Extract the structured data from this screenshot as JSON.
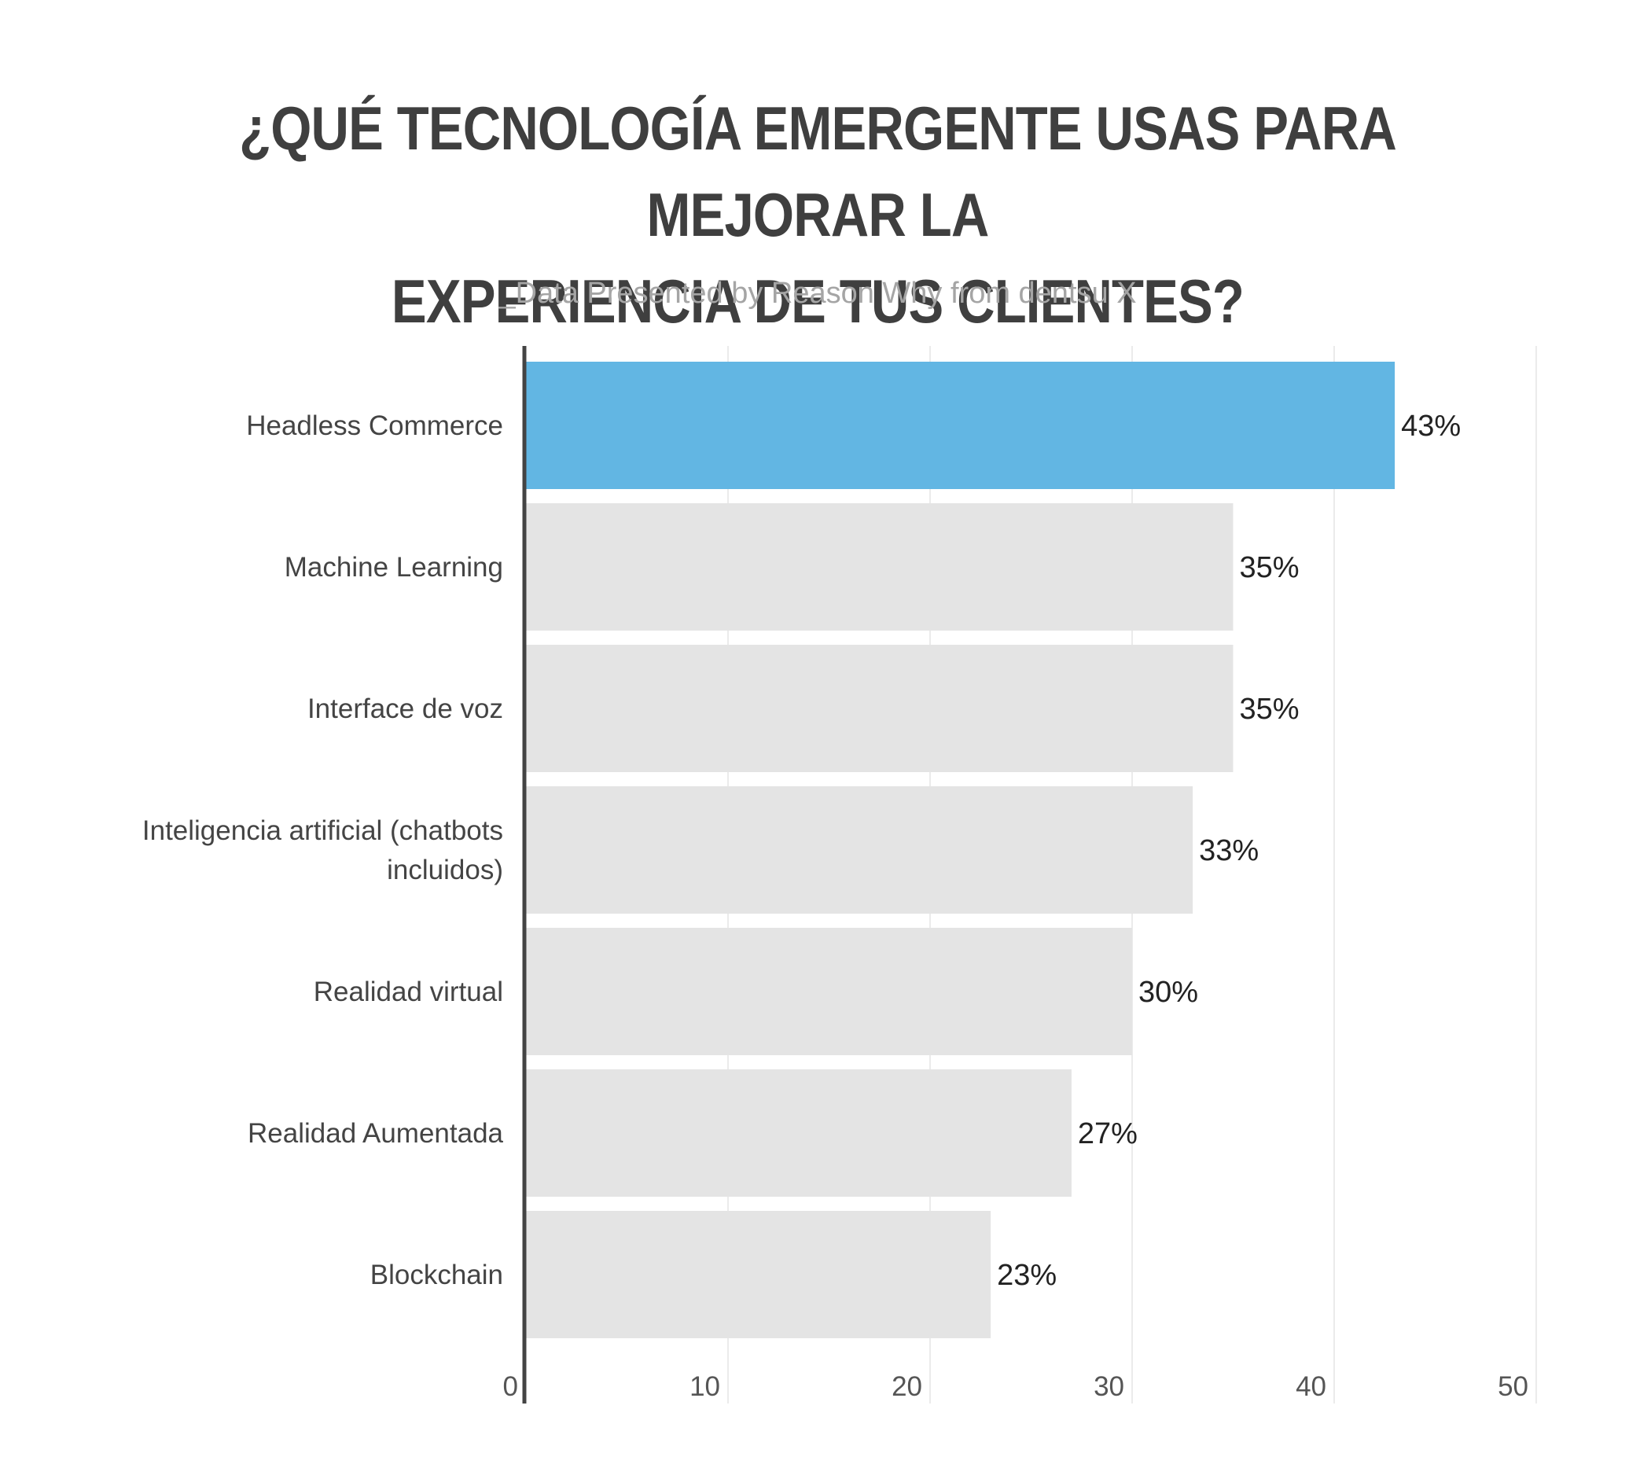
{
  "chart_data": {
    "type": "bar",
    "orientation": "horizontal",
    "title": "¿QUÉ TECNOLOGÍA EMERGENTE USAS PARA MEJORAR LA EXPERIENCIA DE TUS CLIENTES?",
    "title_lines": [
      "¿QUÉ TECNOLOGÍA EMERGENTE USAS PARA MEJORAR LA",
      "EXPERIENCIA DE TUS CLIENTES?"
    ],
    "subtitle": "_Data Presented by Reason Why from dentsu X",
    "xlabel": "",
    "ylabel": "",
    "categories": [
      "Headless Commerce",
      "Machine Learning",
      "Interface de voz",
      "Inteligencia artificial (chatbots incluidos)",
      "Realidad virtual",
      "Realidad Aumentada",
      "Blockchain"
    ],
    "category_lines": [
      [
        "Headless Commerce"
      ],
      [
        "Machine Learning"
      ],
      [
        "Interface de voz"
      ],
      [
        "Inteligencia artificial (chatbots",
        "incluidos)"
      ],
      [
        "Realidad virtual"
      ],
      [
        "Realidad Aumentada"
      ],
      [
        "Blockchain"
      ]
    ],
    "values": [
      43,
      35,
      35,
      33,
      30,
      27,
      23
    ],
    "data_labels": [
      "43%",
      "35%",
      "35%",
      "33%",
      "30%",
      "27%",
      "23%"
    ],
    "xlim": [
      0,
      50
    ],
    "xticks": [
      0,
      10,
      20,
      30,
      40,
      50
    ],
    "xtick_labels": [
      "0",
      "10",
      "20",
      "30",
      "40",
      "50"
    ],
    "grid": true,
    "legend": "none",
    "colors": {
      "highlight": "#62b6e3",
      "bar": "#e4e4e4",
      "axis": "#444444",
      "grid": "#ebebeb"
    },
    "highlight_index": 0
  }
}
